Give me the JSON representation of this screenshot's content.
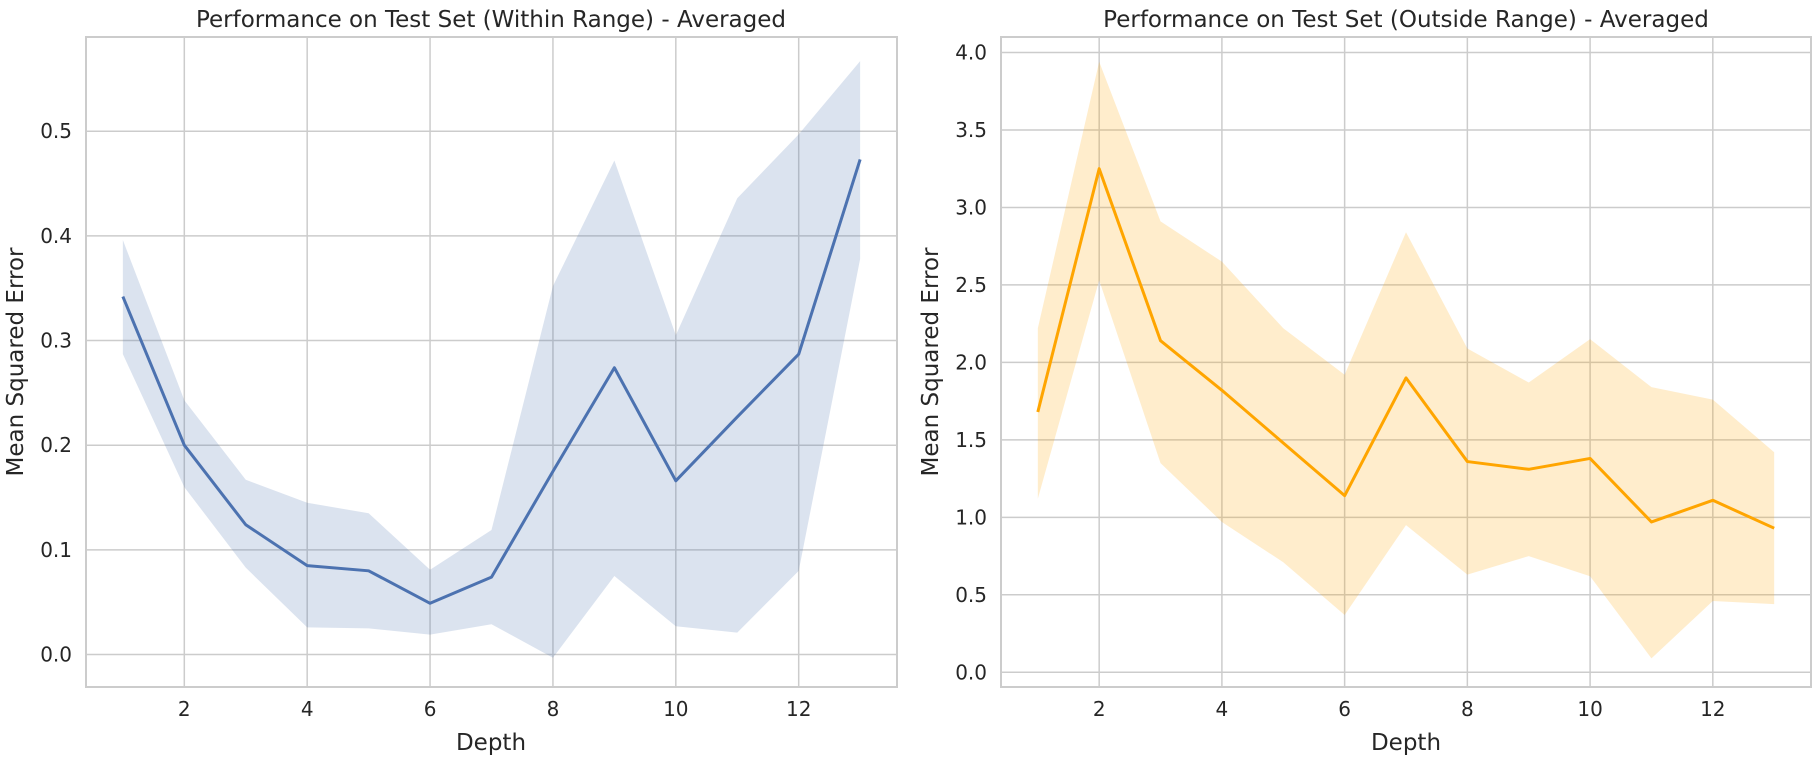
{
  "chart_data": [
    {
      "type": "line",
      "title": "Performance on Test Set (Within Range) - Averaged",
      "xlabel": "Depth",
      "ylabel": "Mean Squared Error",
      "xlim": [
        0.4,
        13.6
      ],
      "ylim": [
        -0.031,
        0.59
      ],
      "xticks": [
        2,
        4,
        6,
        8,
        10,
        12
      ],
      "yticks": [
        0.0,
        0.1,
        0.2,
        0.3,
        0.4,
        0.5
      ],
      "ytick_labels": [
        "0.0",
        "0.1",
        "0.2",
        "0.3",
        "0.4",
        "0.5"
      ],
      "grid": true,
      "color": "#4c72b0",
      "band_opacity": 0.2,
      "x": [
        1,
        2,
        3,
        4,
        5,
        6,
        7,
        8,
        9,
        10,
        11,
        12,
        13
      ],
      "series": [
        {
          "values": [
            0.342,
            0.2,
            0.124,
            0.085,
            0.08,
            0.049,
            0.074,
            0.175,
            0.274,
            0.166,
            0.227,
            0.287,
            0.473
          ],
          "lower": [
            0.287,
            0.16,
            0.083,
            0.026,
            0.025,
            0.019,
            0.029,
            -0.003,
            0.075,
            0.027,
            0.021,
            0.08,
            0.378
          ],
          "upper": [
            0.396,
            0.243,
            0.167,
            0.145,
            0.135,
            0.081,
            0.119,
            0.352,
            0.472,
            0.305,
            0.436,
            0.497,
            0.567
          ]
        }
      ]
    },
    {
      "type": "line",
      "title": "Performance on Test Set (Outside Range) - Averaged",
      "xlabel": "Depth",
      "ylabel": "Mean Squared Error",
      "xlim": [
        0.4,
        13.6
      ],
      "ylim": [
        -0.095,
        4.1
      ],
      "xticks": [
        2,
        4,
        6,
        8,
        10,
        12
      ],
      "yticks": [
        0.0,
        0.5,
        1.0,
        1.5,
        2.0,
        2.5,
        3.0,
        3.5,
        4.0
      ],
      "ytick_labels": [
        "0.0",
        "0.5",
        "1.0",
        "1.5",
        "2.0",
        "2.5",
        "3.0",
        "3.5",
        "4.0"
      ],
      "grid": true,
      "color": "#ffa500",
      "band_opacity": 0.2,
      "x": [
        1,
        2,
        3,
        4,
        5,
        6,
        7,
        8,
        9,
        10,
        11,
        12,
        13
      ],
      "series": [
        {
          "values": [
            1.68,
            3.25,
            2.14,
            1.82,
            1.48,
            1.14,
            1.9,
            1.36,
            1.31,
            1.38,
            0.97,
            1.11,
            0.93
          ],
          "lower": [
            1.12,
            2.53,
            1.35,
            0.97,
            0.71,
            0.37,
            0.95,
            0.63,
            0.75,
            0.62,
            0.09,
            0.46,
            0.44
          ],
          "upper": [
            2.22,
            3.94,
            2.91,
            2.65,
            2.22,
            1.92,
            2.84,
            2.09,
            1.87,
            2.15,
            1.84,
            1.76,
            1.42
          ]
        }
      ]
    }
  ]
}
